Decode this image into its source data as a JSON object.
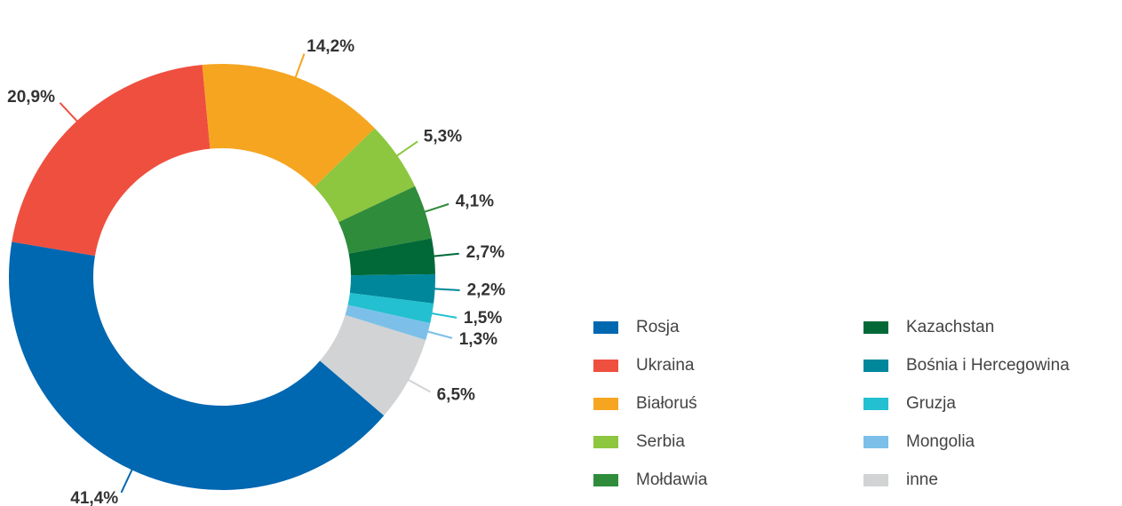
{
  "chart_data": {
    "type": "donut",
    "categories": [
      "Rosja",
      "Ukraina",
      "Białoruś",
      "Serbia",
      "Mołdawia",
      "Kazachstan",
      "Bośnia i Hercegowina",
      "Gruzja",
      "Mongolia",
      "inne"
    ],
    "values": [
      41.4,
      20.9,
      14.2,
      5.3,
      4.1,
      2.7,
      2.2,
      1.5,
      1.3,
      6.5
    ],
    "value_labels": [
      "41,4%",
      "20,9%",
      "14,2%",
      "5,3%",
      "4,1%",
      "2,7%",
      "2,2%",
      "1,5%",
      "1,3%",
      "6,5%"
    ],
    "colors": [
      "#0067b1",
      "#ef4f3f",
      "#f6a521",
      "#8dc63f",
      "#2f8c3b",
      "#006937",
      "#00879b",
      "#22c0d0",
      "#7cc0e9",
      "#d1d3d4"
    ],
    "legend": "right"
  }
}
